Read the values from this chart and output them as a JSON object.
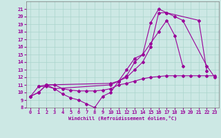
{
  "xlabel": "Windchill (Refroidissement éolien,°C)",
  "xlim": [
    -0.5,
    23.5
  ],
  "ylim": [
    8,
    22
  ],
  "yticks": [
    8,
    9,
    10,
    11,
    12,
    13,
    14,
    15,
    16,
    17,
    18,
    19,
    20,
    21
  ],
  "xticks": [
    0,
    1,
    2,
    3,
    4,
    5,
    6,
    7,
    8,
    9,
    10,
    11,
    12,
    13,
    14,
    15,
    16,
    17,
    18,
    19,
    20,
    21,
    22,
    23
  ],
  "bg_color": "#cce8e4",
  "line_color": "#990099",
  "grid_color": "#aad4cc",
  "line1_x": [
    0,
    1,
    2,
    3,
    4,
    5,
    6,
    7,
    8,
    9,
    10,
    11,
    12,
    13,
    14,
    15,
    16,
    17,
    18,
    19
  ],
  "line1_y": [
    9.5,
    10.0,
    11.0,
    10.5,
    9.8,
    9.3,
    9.0,
    8.5,
    8.0,
    9.5,
    10.0,
    11.5,
    12.2,
    14.0,
    15.0,
    16.5,
    18.0,
    19.5,
    17.5,
    13.5
  ],
  "line2_x": [
    0,
    1,
    2,
    3,
    10,
    11,
    12,
    13,
    14,
    15,
    16,
    17,
    21,
    22
  ],
  "line2_y": [
    9.5,
    10.8,
    10.8,
    10.5,
    11.0,
    11.5,
    13.0,
    14.5,
    15.0,
    19.2,
    21.0,
    20.5,
    19.5,
    12.8
  ],
  "line3_x": [
    1,
    2,
    10,
    11,
    12,
    13,
    14,
    15,
    16,
    17,
    18,
    19,
    22,
    23
  ],
  "line3_y": [
    10.8,
    11.0,
    11.2,
    11.5,
    12.0,
    13.0,
    14.0,
    16.0,
    20.5,
    20.5,
    20.0,
    19.5,
    13.5,
    12.0
  ],
  "line4_x": [
    0,
    1,
    2,
    3,
    4,
    5,
    6,
    7,
    8,
    9,
    10,
    11,
    12,
    13,
    14,
    15,
    16,
    17,
    18,
    19,
    20,
    21,
    22,
    23
  ],
  "line4_y": [
    9.5,
    10.0,
    11.0,
    11.0,
    10.5,
    10.3,
    10.2,
    10.2,
    10.2,
    10.3,
    10.5,
    11.0,
    11.2,
    11.5,
    11.8,
    12.0,
    12.1,
    12.2,
    12.2,
    12.2,
    12.2,
    12.2,
    12.2,
    12.2
  ]
}
